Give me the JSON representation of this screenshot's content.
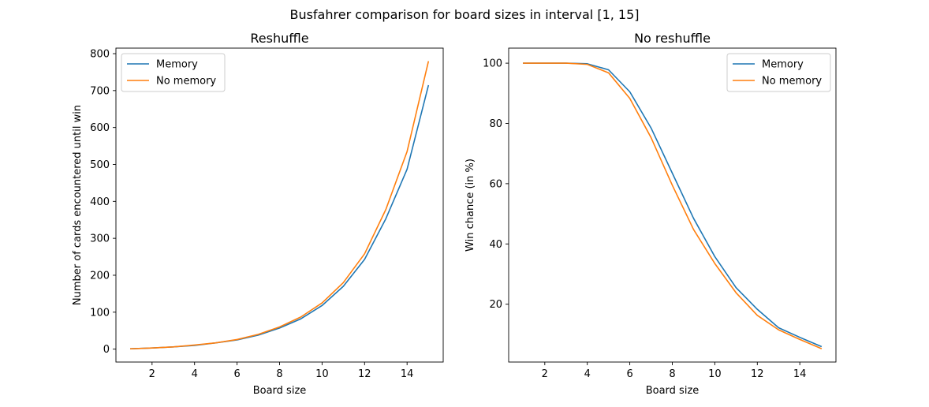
{
  "figure": {
    "title": "Busfahrer comparison for board sizes in interval [1, 15]"
  },
  "colors": {
    "memory": "#1f77b4",
    "no_memory": "#ff7f0e"
  },
  "chart_data": [
    {
      "type": "line",
      "title": "Reshuffle",
      "xlabel": "Board size",
      "ylabel": "Number of cards encountered until win",
      "xlim": [
        0.3,
        15.7
      ],
      "ylim": [
        -35,
        815
      ],
      "xticks": [
        2,
        4,
        6,
        8,
        10,
        12,
        14
      ],
      "yticks": [
        0,
        100,
        200,
        300,
        400,
        500,
        600,
        700,
        800
      ],
      "legend": "top-left",
      "x": [
        1,
        2,
        3,
        4,
        5,
        6,
        7,
        8,
        9,
        10,
        11,
        12,
        13,
        14,
        15
      ],
      "series": [
        {
          "name": "Memory",
          "color": "#1f77b4",
          "values": [
            1,
            3,
            6,
            10,
            17,
            25,
            38,
            57,
            82,
            118,
            170,
            243,
            353,
            487,
            713
          ]
        },
        {
          "name": "No memory",
          "color": "#ff7f0e",
          "values": [
            1,
            3,
            6,
            11,
            17,
            26,
            40,
            60,
            87,
            125,
            180,
            258,
            378,
            535,
            778
          ]
        }
      ]
    },
    {
      "type": "line",
      "title": "No reshuffle",
      "xlabel": "Board size",
      "ylabel": "Win chance (in %)",
      "xlim": [
        0.3,
        15.7
      ],
      "ylim": [
        0.8,
        105
      ],
      "xticks": [
        2,
        4,
        6,
        8,
        10,
        12,
        14
      ],
      "yticks": [
        20,
        40,
        60,
        80,
        100
      ],
      "legend": "top-right",
      "x": [
        1,
        2,
        3,
        4,
        5,
        6,
        7,
        8,
        9,
        10,
        11,
        12,
        13,
        14,
        15
      ],
      "series": [
        {
          "name": "Memory",
          "color": "#1f77b4",
          "values": [
            100,
            100,
            100,
            99.8,
            97.8,
            90.5,
            78.5,
            63.5,
            48.5,
            35.8,
            25.5,
            18.3,
            12.2,
            9.0,
            6.0
          ]
        },
        {
          "name": "No memory",
          "color": "#ff7f0e",
          "values": [
            100,
            100,
            100,
            99.6,
            96.8,
            88.3,
            75.3,
            59.5,
            44.8,
            33.5,
            23.8,
            16.3,
            11.5,
            8.3,
            5.3
          ]
        }
      ]
    }
  ]
}
